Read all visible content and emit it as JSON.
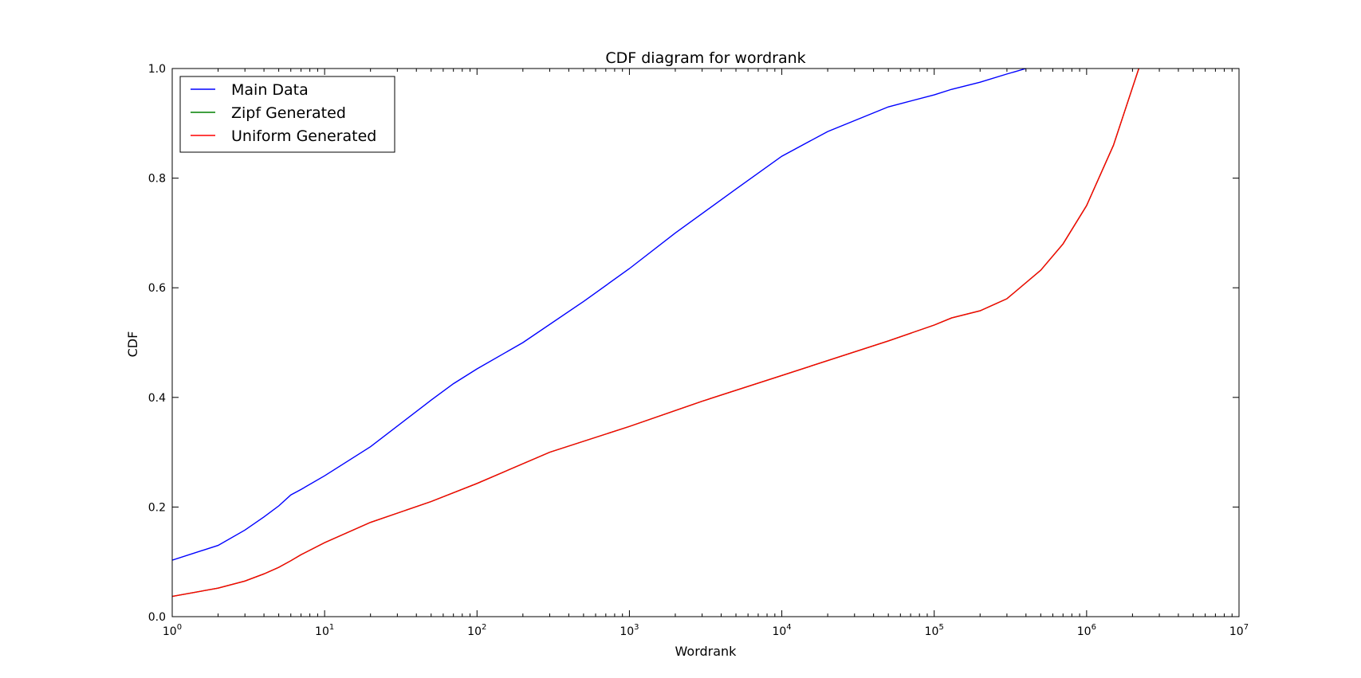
{
  "chart_data": {
    "type": "line",
    "title": "CDF diagram for wordrank",
    "xlabel": "Wordrank",
    "ylabel": "CDF",
    "xscale": "log",
    "xlim": [
      1,
      10000000
    ],
    "ylim": [
      0.0,
      1.0
    ],
    "grid": false,
    "legend_position": "top-left",
    "x_tick_labels": [
      {
        "value": 1,
        "base": "10",
        "exp": "0"
      },
      {
        "value": 10,
        "base": "10",
        "exp": "1"
      },
      {
        "value": 100,
        "base": "10",
        "exp": "2"
      },
      {
        "value": 1000,
        "base": "10",
        "exp": "3"
      },
      {
        "value": 10000,
        "base": "10",
        "exp": "4"
      },
      {
        "value": 100000,
        "base": "10",
        "exp": "5"
      },
      {
        "value": 1000000,
        "base": "10",
        "exp": "6"
      },
      {
        "value": 10000000,
        "base": "10",
        "exp": "7"
      }
    ],
    "y_tick_labels": [
      {
        "value": 0.0,
        "label": "0.0"
      },
      {
        "value": 0.2,
        "label": "0.2"
      },
      {
        "value": 0.4,
        "label": "0.4"
      },
      {
        "value": 0.6,
        "label": "0.6"
      },
      {
        "value": 0.8,
        "label": "0.8"
      },
      {
        "value": 1.0,
        "label": "1.0"
      }
    ],
    "series": [
      {
        "name": "Main Data",
        "color": "#0000ff",
        "x": [
          1,
          2,
          3,
          4,
          5,
          6,
          7,
          10,
          20,
          50,
          70,
          100,
          200,
          500,
          1000,
          2000,
          5000,
          10000,
          20000,
          50000,
          100000,
          130000,
          200000,
          300000,
          400000
        ],
        "y": [
          0.103,
          0.13,
          0.158,
          0.182,
          0.202,
          0.222,
          0.232,
          0.257,
          0.31,
          0.395,
          0.425,
          0.452,
          0.5,
          0.575,
          0.635,
          0.7,
          0.78,
          0.84,
          0.885,
          0.93,
          0.952,
          0.962,
          0.975,
          0.99,
          1.0
        ]
      },
      {
        "name": "Zipf Generated",
        "color": "#008000",
        "x": [
          1,
          2,
          3,
          4,
          5,
          6,
          7,
          10,
          20,
          50,
          100,
          300,
          1000,
          3000,
          10000,
          50000,
          100000,
          130000,
          200000,
          300000,
          500000,
          700000,
          1000000,
          1500000,
          2200000
        ],
        "y": [
          0.037,
          0.052,
          0.065,
          0.078,
          0.09,
          0.102,
          0.113,
          0.135,
          0.172,
          0.21,
          0.243,
          0.3,
          0.347,
          0.393,
          0.44,
          0.503,
          0.532,
          0.545,
          0.558,
          0.58,
          0.632,
          0.68,
          0.75,
          0.86,
          1.0
        ]
      },
      {
        "name": "Uniform Generated",
        "color": "#ff0000",
        "x": [
          1,
          2,
          3,
          4,
          5,
          6,
          7,
          10,
          20,
          50,
          100,
          300,
          1000,
          3000,
          10000,
          50000,
          100000,
          130000,
          200000,
          300000,
          500000,
          700000,
          1000000,
          1500000,
          2200000
        ],
        "y": [
          0.037,
          0.052,
          0.065,
          0.078,
          0.09,
          0.102,
          0.113,
          0.135,
          0.172,
          0.21,
          0.243,
          0.3,
          0.347,
          0.393,
          0.44,
          0.503,
          0.532,
          0.545,
          0.558,
          0.58,
          0.632,
          0.68,
          0.75,
          0.86,
          1.0
        ]
      }
    ]
  }
}
